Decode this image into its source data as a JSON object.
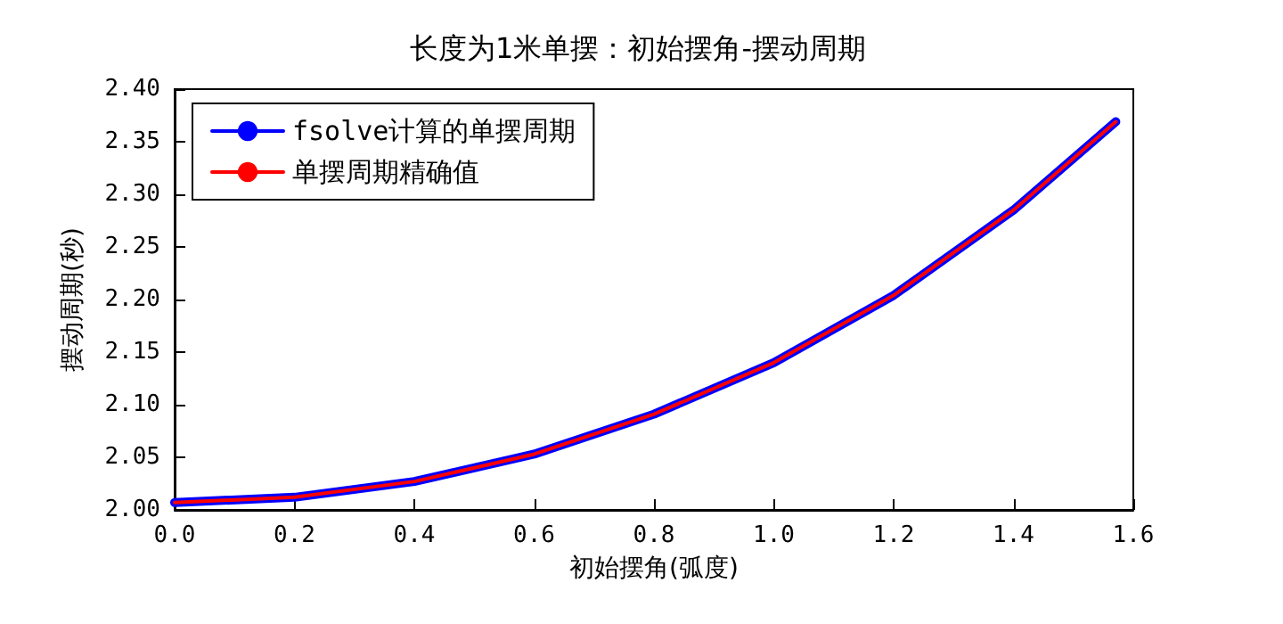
{
  "chart_data": {
    "type": "line",
    "title": "长度为1米单摆：初始摆角-摆动周期",
    "xlabel": "初始摆角(弧度)",
    "ylabel": "摆动周期(秒)",
    "x": [
      0,
      0.2,
      0.4,
      0.6,
      0.8,
      1.0,
      1.2,
      1.4,
      1.5708
    ],
    "series": [
      {
        "name": "fsolve计算的单摆周期",
        "color": "#0000ff",
        "values": [
          2.007,
          2.012,
          2.027,
          2.053,
          2.091,
          2.14,
          2.204,
          2.285,
          2.369
        ]
      },
      {
        "name": "单摆周期精确值",
        "color": "#ff0000",
        "values": [
          2.007,
          2.012,
          2.027,
          2.053,
          2.091,
          2.14,
          2.204,
          2.285,
          2.369
        ]
      }
    ],
    "xlim": [
      0,
      1.6
    ],
    "xticks": [
      {
        "value": 0,
        "label": "0.0"
      },
      {
        "value": 0.2,
        "label": "0.2"
      },
      {
        "value": 0.4,
        "label": "0.4"
      },
      {
        "value": 0.6,
        "label": "0.6"
      },
      {
        "value": 0.8,
        "label": "0.8"
      },
      {
        "value": 1.0,
        "label": "1.0"
      },
      {
        "value": 1.2,
        "label": "1.2"
      },
      {
        "value": 1.4,
        "label": "1.4"
      },
      {
        "value": 1.6,
        "label": "1.6"
      }
    ],
    "ylim": [
      2.0,
      2.4
    ],
    "yticks": [
      {
        "value": 2.0,
        "label": "2.00"
      },
      {
        "value": 2.05,
        "label": "2.05"
      },
      {
        "value": 2.1,
        "label": "2.10"
      },
      {
        "value": 2.15,
        "label": "2.15"
      },
      {
        "value": 2.2,
        "label": "2.20"
      },
      {
        "value": 2.25,
        "label": "2.25"
      },
      {
        "value": 2.3,
        "label": "2.30"
      },
      {
        "value": 2.35,
        "label": "2.35"
      },
      {
        "value": 2.4,
        "label": "2.40"
      }
    ],
    "legend": "top left",
    "grid": false,
    "marker": "none",
    "line_style": "solid"
  }
}
